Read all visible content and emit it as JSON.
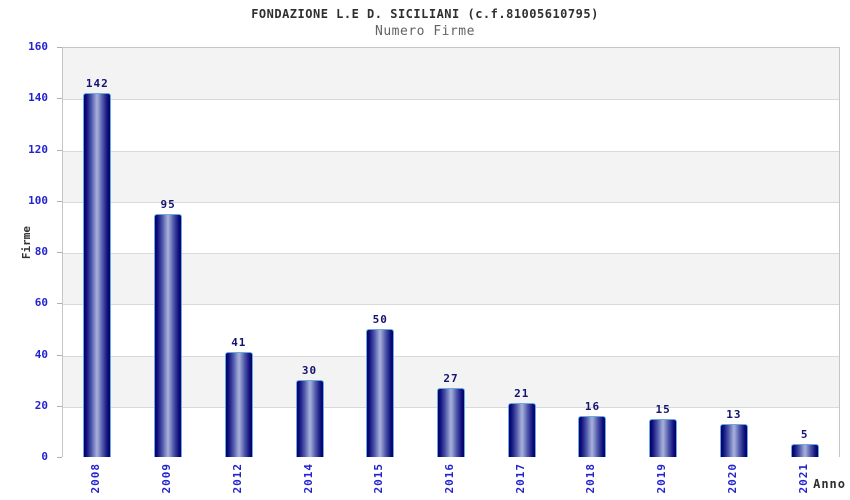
{
  "chart_data": {
    "type": "bar",
    "title": "FONDAZIONE L.E D. SICILIANI (c.f.81005610795)",
    "subtitle": "Numero Firme",
    "xlabel": "Anno",
    "ylabel": "Firme",
    "categories": [
      "2008",
      "2009",
      "2012",
      "2014",
      "2015",
      "2016",
      "2017",
      "2018",
      "2019",
      "2020",
      "2021"
    ],
    "values": [
      142,
      95,
      41,
      30,
      50,
      27,
      21,
      16,
      15,
      13,
      5
    ],
    "ylim": [
      0,
      160
    ],
    "ytick_step": 20,
    "yticks": [
      0,
      20,
      40,
      60,
      80,
      100,
      120,
      140,
      160
    ],
    "grid": true,
    "legend": "none",
    "colors": {
      "bar_dark": "#00006b",
      "bar_light": "#a3abd8",
      "bar_border": "#6aabdf",
      "axis_tick_label": "#2424cc",
      "value_label": "#14146e",
      "band_gray": "#f3f3f3",
      "band_white": "#ffffff",
      "gridline": "#d9d9d9",
      "title_color": "#2f2f2f",
      "subtitle_color": "#636363"
    }
  }
}
